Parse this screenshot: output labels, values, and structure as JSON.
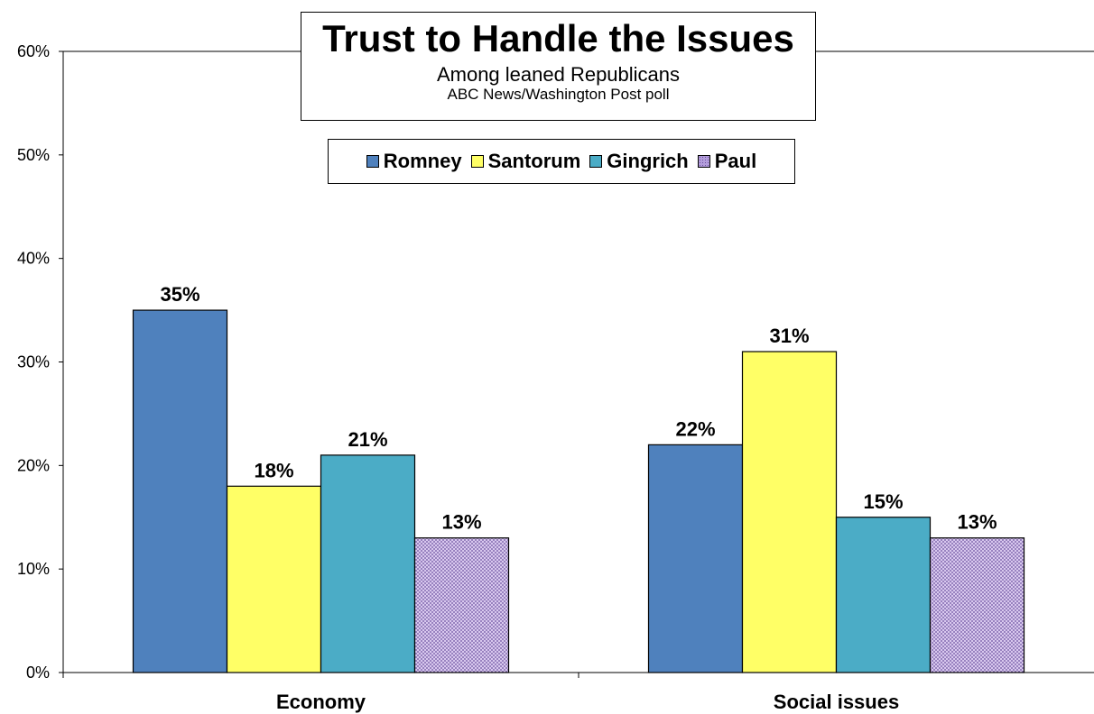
{
  "chart_data": {
    "type": "bar",
    "title": "Trust to Handle the Issues",
    "subtitle": "Among leaned Republicans",
    "source": "ABC News/Washington  Post poll",
    "categories": [
      "Economy",
      "Social issues"
    ],
    "series": [
      {
        "name": "Romney",
        "values": [
          35,
          22
        ],
        "color": "#4f81bd",
        "pattern": "solid"
      },
      {
        "name": "Santorum",
        "values": [
          18,
          31
        ],
        "color": "#ffff66",
        "pattern": "solid"
      },
      {
        "name": "Gingrich",
        "values": [
          21,
          15
        ],
        "color": "#4bacc6",
        "pattern": "solid"
      },
      {
        "name": "Paul",
        "values": [
          13,
          13
        ],
        "color": "#b39ddb",
        "pattern": "dotted"
      }
    ],
    "value_labels": [
      [
        "35%",
        "22%"
      ],
      [
        "18%",
        "31%"
      ],
      [
        "21%",
        "15%"
      ],
      [
        "13%",
        "13%"
      ]
    ],
    "y_ticks": [
      "0%",
      "10%",
      "20%",
      "30%",
      "40%",
      "50%",
      "60%"
    ],
    "ylim": [
      0,
      60
    ],
    "grid": false,
    "legend_placement": "top-center"
  }
}
